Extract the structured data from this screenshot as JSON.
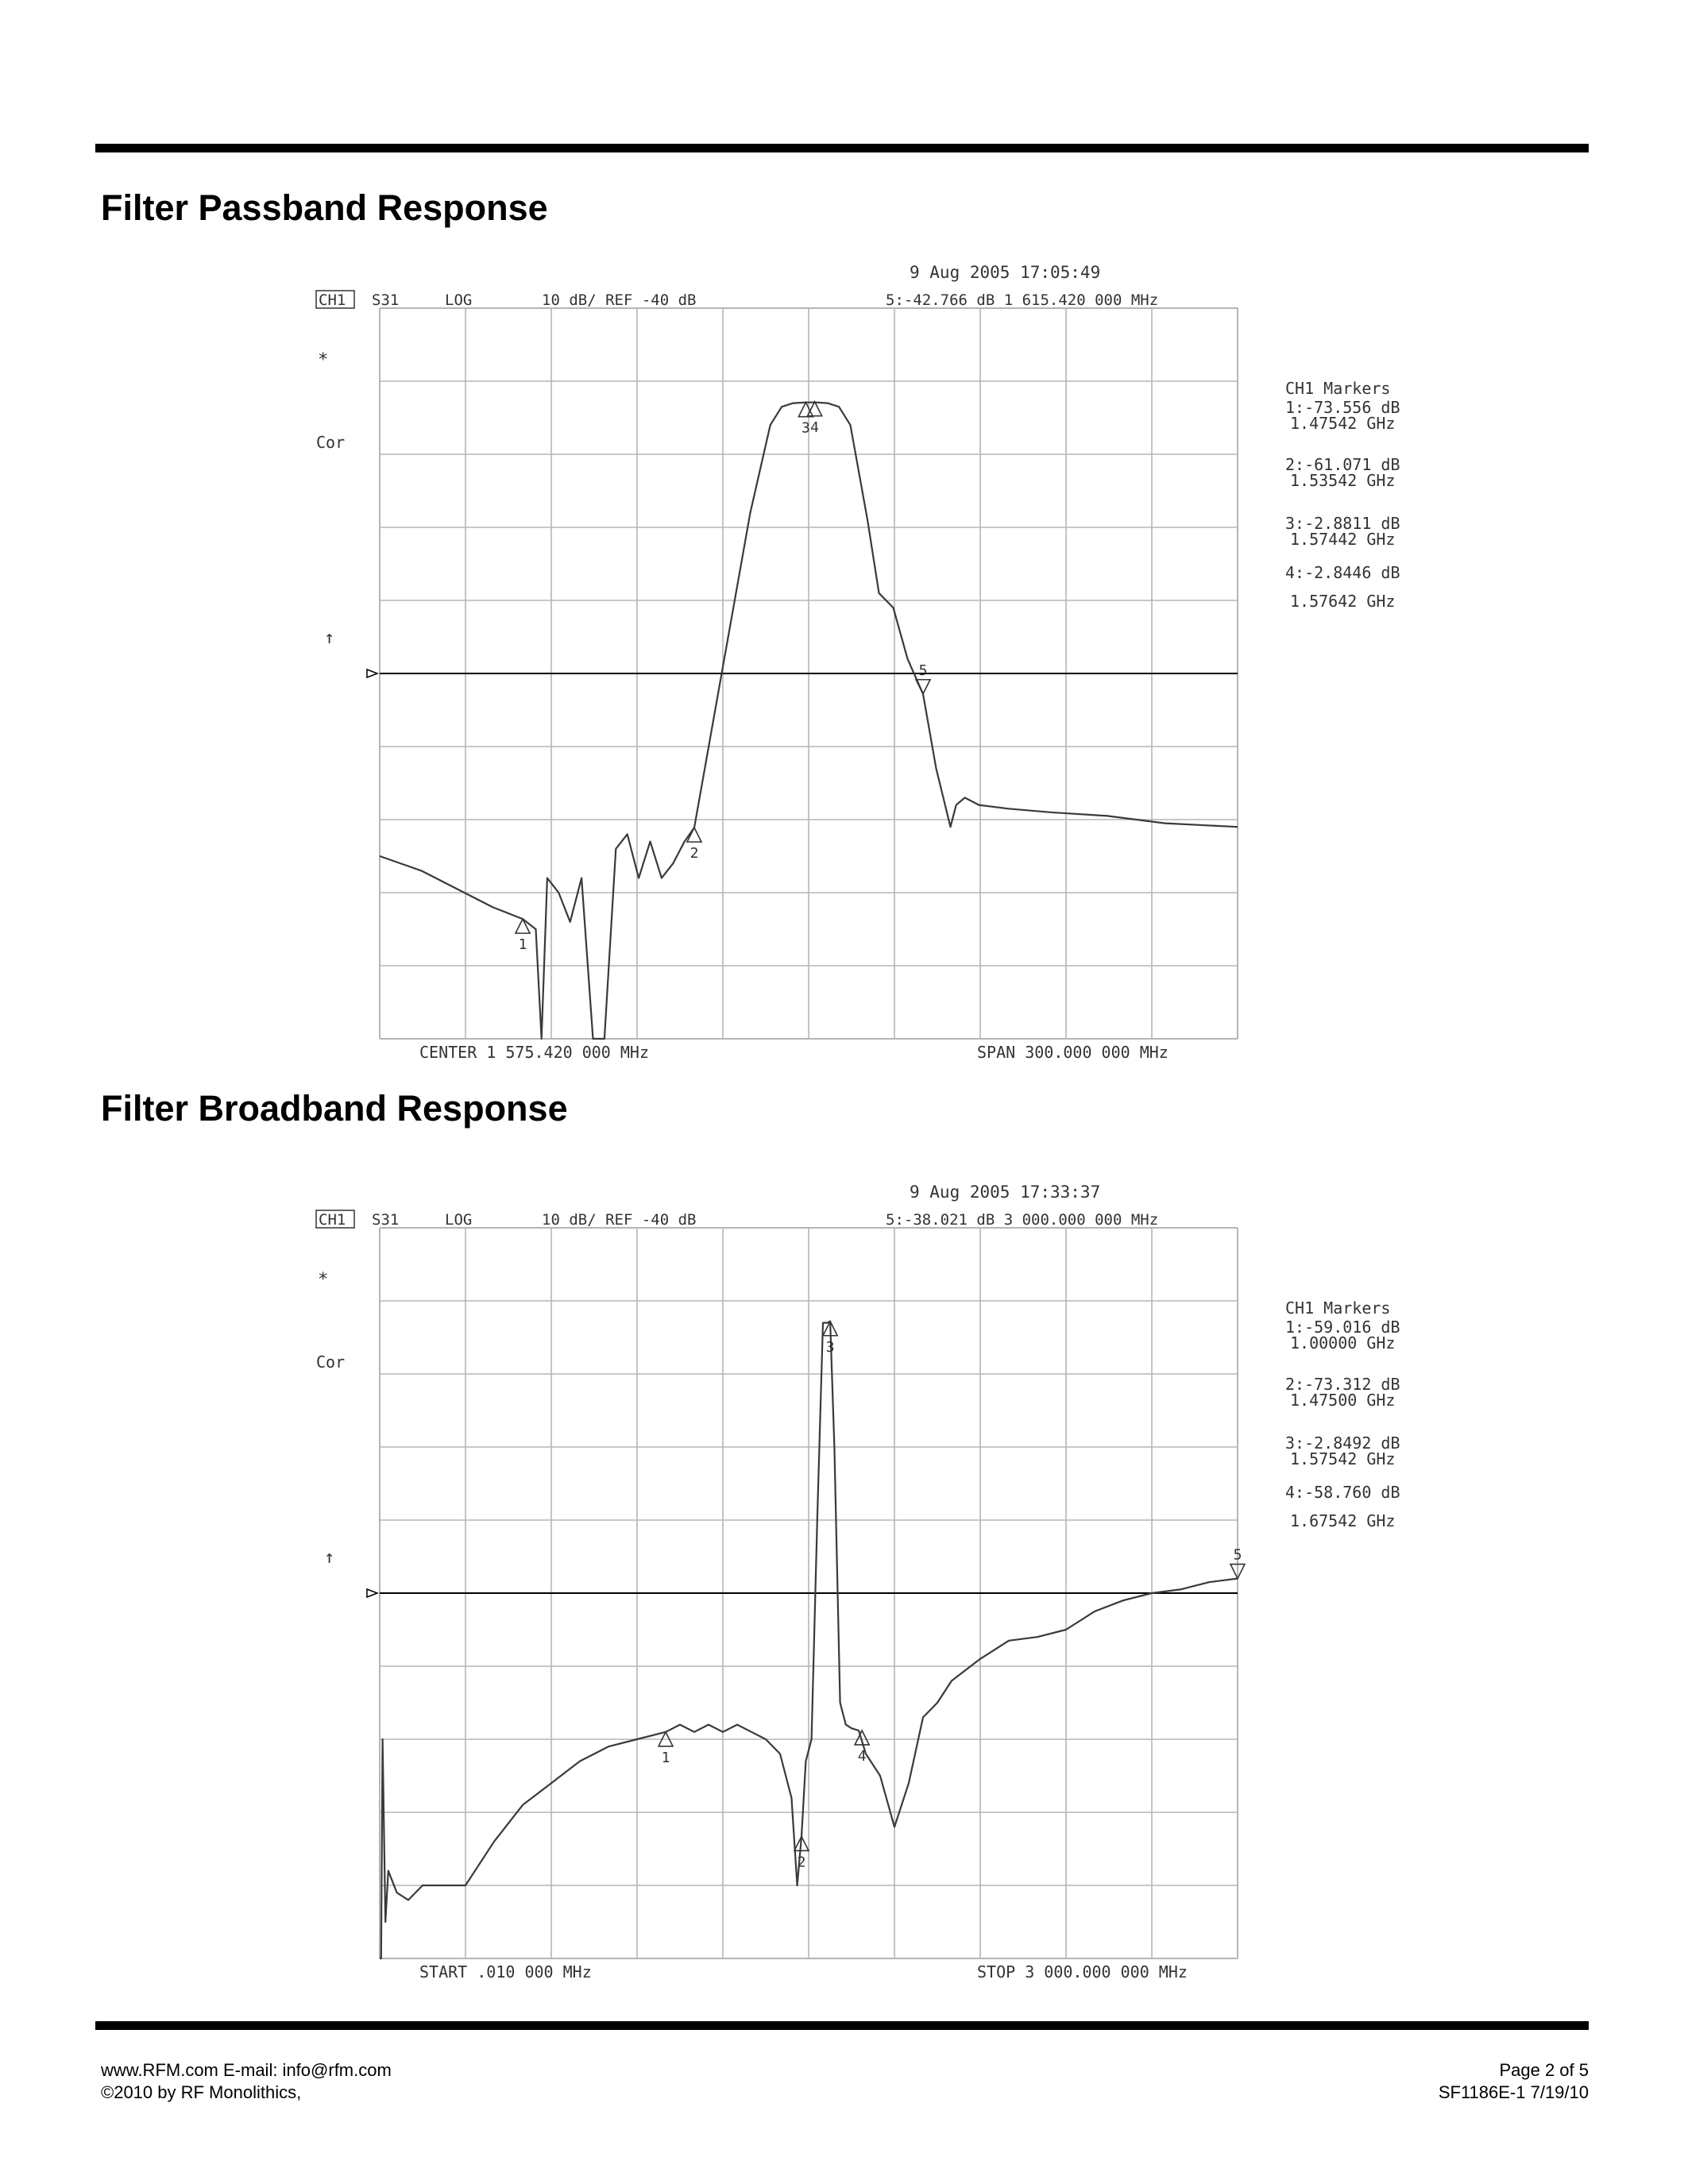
{
  "page": {
    "header_rule": true,
    "footer": {
      "left_line1": "www.RFM.com  E-mail: info@rfm.com",
      "left_line2": "©2010 by RF Monolithics,",
      "right_line1": "Page 2 of 5",
      "right_line2": "SF1186E-1  7/19/10"
    }
  },
  "sections": [
    {
      "title": "Filter Passband Response"
    },
    {
      "title": "Filter Broadband Response"
    }
  ],
  "chart_data": [
    {
      "type": "line",
      "title": "Filter Passband Response",
      "timestamp": "9 Aug 2005   17:05:49",
      "header": {
        "channel": "CH1",
        "param": "S31",
        "format": "LOG",
        "scale": "10 dB/ REF  -40 dB",
        "active_marker": "5:-42.766 dB   1 615.420 000 MHz"
      },
      "left_annotations": {
        "star": "*",
        "cor": "Cor",
        "arrow": "↑"
      },
      "bottom_left": "CENTER 1 575.420 000 MHz",
      "bottom_right": "SPAN  300.000 000 MHz",
      "markers_title": "CH1 Markers",
      "markers_text": [
        {
          "value": "1:-73.556 dB",
          "freq": "1.47542 GHz"
        },
        {
          "value": "2:-61.071 dB",
          "freq": "1.53542 GHz"
        },
        {
          "value": "3:-2.8811 dB",
          "freq": "1.57442 GHz"
        },
        {
          "value": "4:-2.8446 dB",
          "freq": "1.57642 GHz"
        }
      ],
      "xlim": [
        1425.42,
        1725.42
      ],
      "ylim": [
        -90,
        10
      ],
      "ref_level": -40,
      "x_divisions": 10,
      "y_divisions": 10,
      "x_unit": "MHz",
      "y_unit": "dB",
      "grid": true,
      "trace_color": "#3a3a3a",
      "series": [
        {
          "x": [
            1425.42,
            1440,
            1455,
            1465,
            1475.42,
            1480,
            1482,
            1484,
            1488,
            1492,
            1496,
            1500,
            1504,
            1508,
            1512,
            1516,
            1520,
            1524,
            1528,
            1532,
            1535.42,
            1545,
            1555,
            1562,
            1566,
            1570,
            1574.42,
            1578,
            1582,
            1586,
            1590,
            1596,
            1600,
            1605,
            1610,
            1615.42,
            1620,
            1625,
            1627,
            1630,
            1635,
            1645,
            1660,
            1680,
            1700,
            1725.42
          ],
          "y": [
            -65,
            -67,
            -70,
            -72,
            -73.6,
            -75,
            -98,
            -68,
            -70,
            -74,
            -68,
            -98,
            -98,
            -64,
            -62,
            -68,
            -63,
            -68,
            -66,
            -63,
            -61.1,
            -40,
            -18,
            -6,
            -3.5,
            -3,
            -2.9,
            -2.9,
            -3,
            -3.5,
            -6,
            -19,
            -29,
            -31,
            -38,
            -42.8,
            -53,
            -61,
            -58,
            -57,
            -58,
            -58.5,
            -59,
            -59.5,
            -60.5,
            -61
          ]
        }
      ],
      "markers": [
        {
          "id": "1",
          "x": 1475.42,
          "y": -73.6,
          "dir": "up"
        },
        {
          "id": "2",
          "x": 1535.42,
          "y": -61.1,
          "dir": "up"
        },
        {
          "id": "3",
          "x": 1574.42,
          "y": -2.9,
          "dir": "up"
        },
        {
          "id": "4",
          "x": 1576.42,
          "y": -2.8,
          "dir": "up"
        },
        {
          "id": "5",
          "x": 1615.42,
          "y": -42.8,
          "dir": "down"
        }
      ]
    },
    {
      "type": "line",
      "title": "Filter Broadband Response",
      "timestamp": "9 Aug 2005   17:33:37",
      "header": {
        "channel": "CH1",
        "param": "S31",
        "format": "LOG",
        "scale": "10 dB/ REF  -40 dB",
        "active_marker": "5:-38.021 dB   3 000.000 000 MHz"
      },
      "left_annotations": {
        "star": "*",
        "cor": "Cor",
        "arrow": "↑"
      },
      "bottom_left": "START  .010 000 MHz",
      "bottom_right": "STOP 3 000.000 000 MHz",
      "markers_title": "CH1 Markers",
      "markers_text": [
        {
          "value": "1:-59.016 dB",
          "freq": "1.00000 GHz"
        },
        {
          "value": "2:-73.312 dB",
          "freq": "1.47500 GHz"
        },
        {
          "value": "3:-2.8492 dB",
          "freq": "1.57542 GHz"
        },
        {
          "value": "4:-58.760 dB",
          "freq": "1.67542 GHz"
        }
      ],
      "xlim": [
        0.01,
        3000
      ],
      "ylim": [
        -90,
        10
      ],
      "ref_level": -40,
      "x_divisions": 10,
      "y_divisions": 10,
      "x_unit": "MHz",
      "y_unit": "dB",
      "grid": true,
      "trace_color": "#3a3a3a",
      "series": [
        {
          "x": [
            0.01,
            5,
            10,
            20,
            30,
            60,
            100,
            150,
            200,
            300,
            400,
            500,
            600,
            700,
            800,
            900,
            1000,
            1050,
            1100,
            1150,
            1200,
            1250,
            1300,
            1350,
            1400,
            1440,
            1460,
            1475,
            1490,
            1510,
            1530,
            1550,
            1565,
            1575.42,
            1590,
            1610,
            1630,
            1650,
            1675.42,
            1700,
            1750,
            1800,
            1850,
            1900,
            1950,
            2000,
            2100,
            2200,
            2300,
            2400,
            2500,
            2600,
            2700,
            2800,
            2900,
            3000
          ],
          "y": [
            -90,
            -90,
            -60,
            -85,
            -78,
            -81,
            -82,
            -80,
            -80,
            -80,
            -74,
            -69,
            -66,
            -63,
            -61,
            -60,
            -59,
            -58,
            -59,
            -58,
            -59,
            -58,
            -59,
            -60,
            -62,
            -68,
            -80,
            -73.3,
            -63,
            -60,
            -30,
            -3,
            -3,
            -2.8,
            -20,
            -55,
            -58,
            -58.5,
            -58.8,
            -62,
            -65,
            -72,
            -66,
            -57,
            -55,
            -52,
            -49,
            -46.5,
            -46,
            -45,
            -42.5,
            -41,
            -40,
            -39.5,
            -38.5,
            -38
          ]
        }
      ],
      "markers": [
        {
          "id": "1",
          "x": 1000,
          "y": -59,
          "dir": "up"
        },
        {
          "id": "2",
          "x": 1475,
          "y": -73.3,
          "dir": "up"
        },
        {
          "id": "3",
          "x": 1575.42,
          "y": -2.8,
          "dir": "up"
        },
        {
          "id": "4",
          "x": 1675.42,
          "y": -58.8,
          "dir": "up"
        },
        {
          "id": "5",
          "x": 3000,
          "y": -38,
          "dir": "down"
        }
      ]
    }
  ]
}
